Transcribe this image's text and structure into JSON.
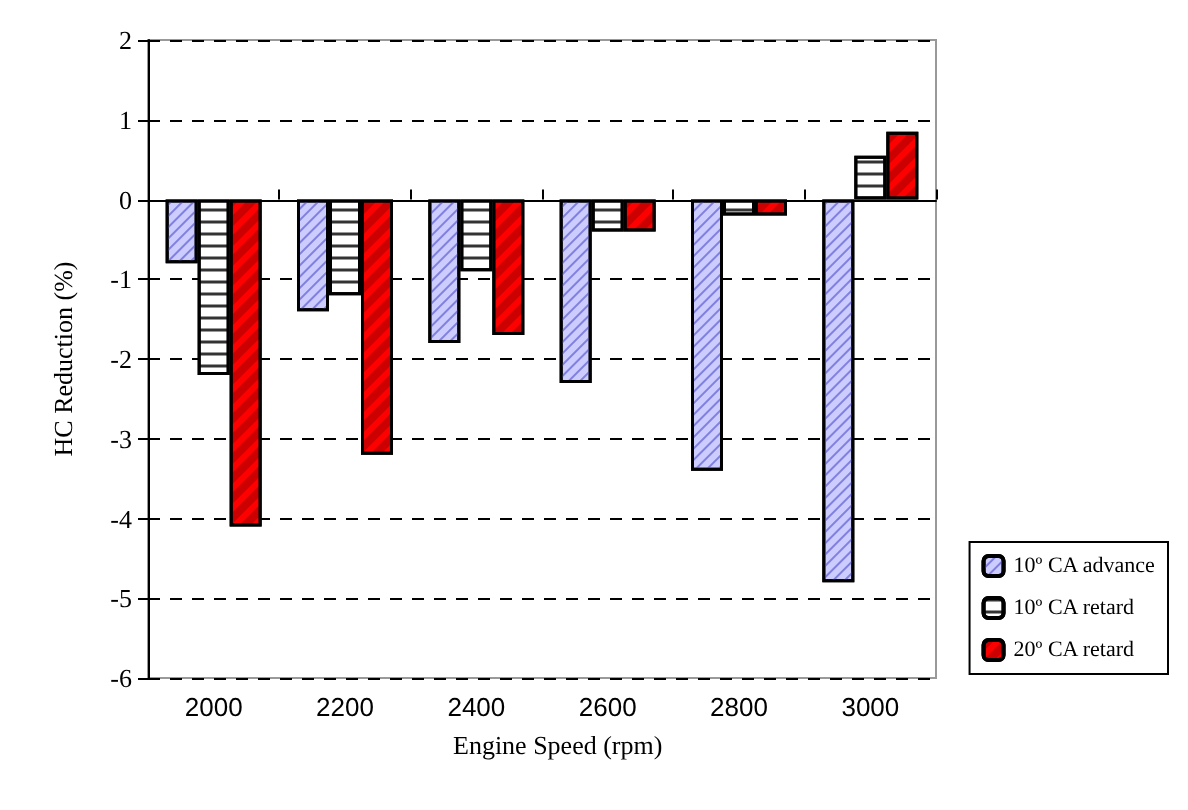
{
  "chart_data": {
    "type": "bar",
    "xlabel": "Engine Speed (rpm)",
    "ylabel": "HC Reduction (%)",
    "categories": [
      "2000",
      "2200",
      "2400",
      "2600",
      "2800",
      "3000"
    ],
    "series": [
      {
        "name": "10º CA advance",
        "color": "#ccccff",
        "values": [
          -0.8,
          -1.4,
          -1.8,
          -2.3,
          -3.4,
          -4.8
        ]
      },
      {
        "name": "10º CA retard",
        "color": "#ffffff",
        "values": [
          -2.2,
          -1.2,
          -0.9,
          -0.4,
          -0.2,
          0.55
        ]
      },
      {
        "name": "20º CA retard",
        "color": "#ff0000",
        "values": [
          -4.1,
          -3.2,
          -1.7,
          -0.4,
          -0.2,
          0.85
        ]
      }
    ],
    "ylim": [
      -6,
      2
    ],
    "yticks": [
      -6,
      -5,
      -4,
      -3,
      -2,
      -1,
      0,
      1,
      2
    ],
    "grid": "y",
    "legend": "right"
  }
}
